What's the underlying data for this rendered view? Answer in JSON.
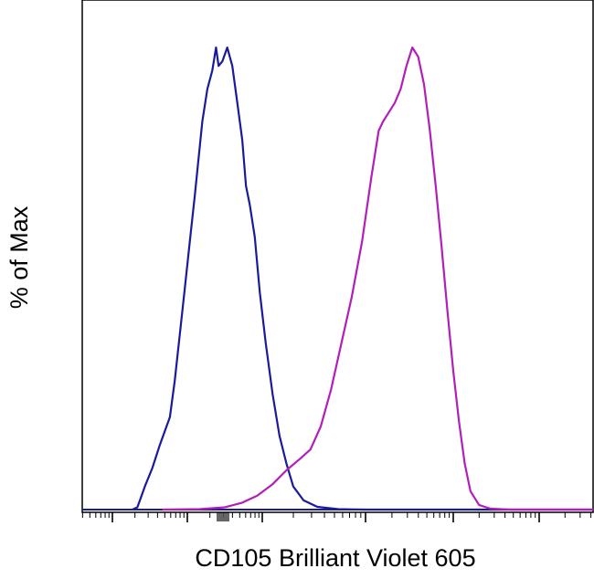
{
  "chart_data": {
    "type": "line",
    "title": "",
    "xlabel": "CD105 Brilliant Violet 605",
    "ylabel": "% of Max",
    "xscale": "log",
    "x_tick_labels": [],
    "y_tick_labels": [],
    "ylim": [
      0,
      100
    ],
    "grid": false,
    "legend": "none",
    "series": [
      {
        "color": "#1a1a9c",
        "points": [
          [
            0.08,
            0
          ],
          [
            0.1,
            0.5
          ],
          [
            0.11,
            2
          ],
          [
            0.13,
            5
          ],
          [
            0.16,
            9
          ],
          [
            0.19,
            14
          ],
          [
            0.23,
            20
          ],
          [
            0.25,
            28
          ],
          [
            0.27,
            38
          ],
          [
            0.29,
            48
          ],
          [
            0.31,
            58
          ],
          [
            0.33,
            68
          ],
          [
            0.345,
            76
          ],
          [
            0.36,
            84
          ],
          [
            0.38,
            91
          ],
          [
            0.4,
            95
          ],
          [
            0.415,
            100
          ],
          [
            0.425,
            96
          ],
          [
            0.44,
            97
          ],
          [
            0.46,
            100
          ],
          [
            0.48,
            96
          ],
          [
            0.5,
            88
          ],
          [
            0.52,
            80
          ],
          [
            0.535,
            70
          ],
          [
            0.55,
            66
          ],
          [
            0.57,
            59
          ],
          [
            0.59,
            47
          ],
          [
            0.61,
            36
          ],
          [
            0.63,
            25
          ],
          [
            0.65,
            16
          ],
          [
            0.67,
            10
          ],
          [
            0.69,
            5
          ],
          [
            0.72,
            2
          ],
          [
            0.76,
            0.6
          ],
          [
            0.82,
            0.1
          ],
          [
            0.9,
            0
          ]
        ]
      },
      {
        "color": "#b21fb8",
        "points": [
          [
            0.2,
            0
          ],
          [
            0.35,
            0.1
          ],
          [
            0.45,
            0.5
          ],
          [
            0.52,
            1.5
          ],
          [
            0.58,
            3
          ],
          [
            0.63,
            5.5
          ],
          [
            0.67,
            8.5
          ],
          [
            0.71,
            11
          ],
          [
            0.74,
            13
          ],
          [
            0.77,
            18
          ],
          [
            0.8,
            26
          ],
          [
            0.83,
            36
          ],
          [
            0.86,
            46
          ],
          [
            0.89,
            58
          ],
          [
            0.92,
            72
          ],
          [
            0.945,
            82
          ],
          [
            0.96,
            84
          ],
          [
            0.98,
            86
          ],
          [
            1.0,
            88
          ],
          [
            1.02,
            91
          ],
          [
            1.04,
            96
          ],
          [
            1.06,
            100
          ],
          [
            1.08,
            98
          ],
          [
            1.1,
            92
          ],
          [
            1.12,
            82
          ],
          [
            1.14,
            70
          ],
          [
            1.16,
            57
          ],
          [
            1.18,
            43
          ],
          [
            1.2,
            30
          ],
          [
            1.22,
            19
          ],
          [
            1.24,
            10
          ],
          [
            1.26,
            4
          ],
          [
            1.29,
            1
          ],
          [
            1.33,
            0.2
          ],
          [
            1.4,
            0
          ]
        ]
      }
    ]
  },
  "colors": {
    "frame": "#000000",
    "background": "#ffffff"
  }
}
